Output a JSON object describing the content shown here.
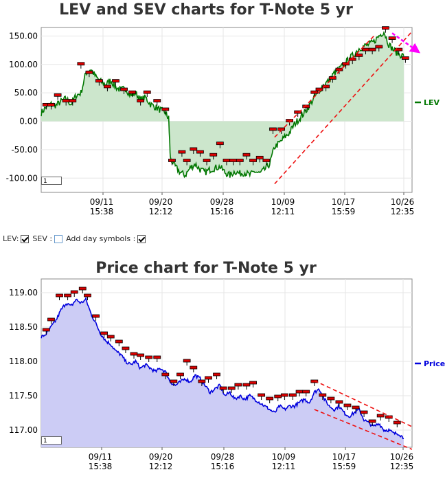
{
  "chart_data": [
    {
      "type": "line",
      "title": "LEV and SEV charts for T-Note 5 yr",
      "legend": "right",
      "series": [
        {
          "name": "LEV",
          "color": "#007700",
          "fill": "#cce6cc"
        }
      ],
      "yticks": [
        "150.00",
        "100.00",
        "50.00",
        "0.00",
        "-50.00",
        "-100.00"
      ],
      "ytick_values": [
        150,
        100,
        50,
        0,
        -50,
        -100
      ],
      "ylim": [
        -125,
        165
      ],
      "xticks": [
        {
          "date": "09/11",
          "time": "15:38"
        },
        {
          "date": "09/20",
          "time": "12:12"
        },
        {
          "date": "09/28",
          "time": "15:16"
        },
        {
          "date": "10/09",
          "time": "12:11"
        },
        {
          "date": "10/17",
          "time": "15:59"
        },
        {
          "date": "10/26",
          "time": "12:35"
        }
      ],
      "zoom_value": "1",
      "anchors": [
        [
          0,
          15
        ],
        [
          3,
          25
        ],
        [
          6,
          30
        ],
        [
          9,
          28
        ],
        [
          12,
          35
        ],
        [
          15,
          40
        ],
        [
          18,
          30
        ],
        [
          21,
          45
        ],
        [
          24,
          50
        ],
        [
          27,
          85
        ],
        [
          30,
          92
        ],
        [
          33,
          78
        ],
        [
          36,
          70
        ],
        [
          39,
          65
        ],
        [
          42,
          72
        ],
        [
          45,
          60
        ],
        [
          48,
          55
        ],
        [
          51,
          58
        ],
        [
          54,
          45
        ],
        [
          57,
          50
        ],
        [
          60,
          38
        ],
        [
          63,
          42
        ],
        [
          66,
          30
        ],
        [
          69,
          25
        ],
        [
          72,
          20
        ],
        [
          75,
          15
        ],
        [
          77,
          5
        ],
        [
          78,
          -65
        ],
        [
          81,
          -80
        ],
        [
          84,
          -90
        ],
        [
          87,
          -95
        ],
        [
          90,
          -82
        ],
        [
          93,
          -75
        ],
        [
          96,
          -85
        ],
        [
          99,
          -90
        ],
        [
          102,
          -85
        ],
        [
          105,
          -82
        ],
        [
          108,
          -80
        ],
        [
          111,
          -90
        ],
        [
          114,
          -95
        ],
        [
          117,
          -88
        ],
        [
          120,
          -92
        ],
        [
          123,
          -90
        ],
        [
          126,
          -95
        ],
        [
          129,
          -88
        ],
        [
          132,
          -92
        ],
        [
          135,
          -85
        ],
        [
          138,
          -75
        ],
        [
          141,
          -45
        ],
        [
          144,
          -38
        ],
        [
          147,
          -28
        ],
        [
          150,
          -20
        ],
        [
          153,
          -5
        ],
        [
          156,
          5
        ],
        [
          159,
          15
        ],
        [
          162,
          28
        ],
        [
          165,
          42
        ],
        [
          168,
          55
        ],
        [
          171,
          65
        ],
        [
          174,
          72
        ],
        [
          177,
          85
        ],
        [
          180,
          92
        ],
        [
          183,
          100
        ],
        [
          186,
          110
        ],
        [
          189,
          118
        ],
        [
          192,
          128
        ],
        [
          195,
          132
        ],
        [
          198,
          135
        ],
        [
          201,
          140
        ],
        [
          204,
          150
        ],
        [
          207,
          158
        ],
        [
          210,
          135
        ],
        [
          213,
          125
        ],
        [
          216,
          118
        ],
        [
          219,
          115
        ]
      ],
      "markers": [
        {
          "x": 3,
          "y": 28
        },
        {
          "x": 6,
          "y": 28
        },
        {
          "x": 10,
          "y": 45
        },
        {
          "x": 15,
          "y": 35
        },
        {
          "x": 19,
          "y": 35
        },
        {
          "x": 24,
          "y": 100
        },
        {
          "x": 29,
          "y": 85
        },
        {
          "x": 35,
          "y": 70
        },
        {
          "x": 40,
          "y": 60
        },
        {
          "x": 45,
          "y": 70
        },
        {
          "x": 50,
          "y": 55
        },
        {
          "x": 55,
          "y": 50
        },
        {
          "x": 60,
          "y": 35
        },
        {
          "x": 64,
          "y": 50
        },
        {
          "x": 70,
          "y": 35
        },
        {
          "x": 75,
          "y": 20
        },
        {
          "x": 79,
          "y": -70
        },
        {
          "x": 85,
          "y": -55
        },
        {
          "x": 88,
          "y": -70
        },
        {
          "x": 92,
          "y": -50
        },
        {
          "x": 96,
          "y": -55
        },
        {
          "x": 100,
          "y": -70
        },
        {
          "x": 104,
          "y": -60
        },
        {
          "x": 108,
          "y": -40
        },
        {
          "x": 112,
          "y": -70
        },
        {
          "x": 116,
          "y": -70
        },
        {
          "x": 120,
          "y": -70
        },
        {
          "x": 124,
          "y": -60
        },
        {
          "x": 128,
          "y": -70
        },
        {
          "x": 132,
          "y": -65
        },
        {
          "x": 136,
          "y": -70
        },
        {
          "x": 140,
          "y": -15
        },
        {
          "x": 145,
          "y": -15
        },
        {
          "x": 150,
          "y": 0
        },
        {
          "x": 155,
          "y": 15
        },
        {
          "x": 160,
          "y": 25
        },
        {
          "x": 165,
          "y": 50
        },
        {
          "x": 168,
          "y": 55
        },
        {
          "x": 172,
          "y": 60
        },
        {
          "x": 176,
          "y": 75
        },
        {
          "x": 180,
          "y": 90
        },
        {
          "x": 184,
          "y": 100
        },
        {
          "x": 188,
          "y": 108
        },
        {
          "x": 192,
          "y": 115
        },
        {
          "x": 196,
          "y": 125
        },
        {
          "x": 200,
          "y": 125
        },
        {
          "x": 204,
          "y": 130
        },
        {
          "x": 208,
          "y": 163
        },
        {
          "x": 212,
          "y": 145
        },
        {
          "x": 216,
          "y": 125
        },
        {
          "x": 220,
          "y": 110
        }
      ],
      "channel_lines": [
        {
          "x1": 141,
          "y1": -28,
          "x2": 201,
          "y2": 150
        },
        {
          "x1": 141,
          "y1": -110,
          "x2": 224,
          "y2": 158
        }
      ],
      "pointer_arrow": {
        "x1": 212,
        "y1": 155,
        "x2": 224,
        "y2": 125,
        "color": "#ff00ff"
      }
    },
    {
      "type": "line",
      "title": "Price chart for T-Note 5 yr",
      "legend": "right",
      "series": [
        {
          "name": "Price",
          "color": "#0000dd",
          "fill": "#ccccf5"
        }
      ],
      "yticks": [
        "119.00",
        "118.50",
        "118.00",
        "117.50",
        "117.00"
      ],
      "ytick_values": [
        119,
        118.5,
        118,
        117.5,
        117
      ],
      "ylim": [
        116.75,
        119.2
      ],
      "xticks": [
        {
          "date": "09/11",
          "time": "15:38"
        },
        {
          "date": "09/20",
          "time": "12:12"
        },
        {
          "date": "09/28",
          "time": "15:16"
        },
        {
          "date": "10/09",
          "time": "12:11"
        },
        {
          "date": "10/17",
          "time": "15:59"
        },
        {
          "date": "10/26",
          "time": "12:35"
        }
      ],
      "zoom_value": "1",
      "anchors": [
        [
          0,
          118.35
        ],
        [
          3,
          118.4
        ],
        [
          6,
          118.5
        ],
        [
          9,
          118.6
        ],
        [
          12,
          118.75
        ],
        [
          15,
          118.85
        ],
        [
          18,
          118.8
        ],
        [
          21,
          118.9
        ],
        [
          24,
          118.85
        ],
        [
          27,
          118.9
        ],
        [
          30,
          118.7
        ],
        [
          33,
          118.55
        ],
        [
          36,
          118.4
        ],
        [
          39,
          118.3
        ],
        [
          42,
          118.25
        ],
        [
          45,
          118.15
        ],
        [
          48,
          118.1
        ],
        [
          51,
          118.0
        ],
        [
          54,
          117.95
        ],
        [
          57,
          118.0
        ],
        [
          60,
          117.9
        ],
        [
          63,
          117.95
        ],
        [
          66,
          117.9
        ],
        [
          69,
          117.85
        ],
        [
          72,
          117.9
        ],
        [
          75,
          117.85
        ],
        [
          78,
          117.7
        ],
        [
          81,
          117.65
        ],
        [
          84,
          117.7
        ],
        [
          87,
          117.75
        ],
        [
          90,
          117.7
        ],
        [
          93,
          117.8
        ],
        [
          96,
          117.75
        ],
        [
          99,
          117.65
        ],
        [
          102,
          117.55
        ],
        [
          105,
          117.6
        ],
        [
          108,
          117.65
        ],
        [
          111,
          117.5
        ],
        [
          114,
          117.55
        ],
        [
          117,
          117.45
        ],
        [
          120,
          117.5
        ],
        [
          123,
          117.45
        ],
        [
          126,
          117.5
        ],
        [
          129,
          117.45
        ],
        [
          132,
          117.4
        ],
        [
          135,
          117.35
        ],
        [
          138,
          117.3
        ],
        [
          141,
          117.25
        ],
        [
          144,
          117.35
        ],
        [
          147,
          117.3
        ],
        [
          150,
          117.35
        ],
        [
          153,
          117.35
        ],
        [
          156,
          117.4
        ],
        [
          159,
          117.45
        ],
        [
          162,
          117.4
        ],
        [
          165,
          117.55
        ],
        [
          168,
          117.6
        ],
        [
          171,
          117.45
        ],
        [
          174,
          117.35
        ],
        [
          177,
          117.3
        ],
        [
          180,
          117.35
        ],
        [
          183,
          117.25
        ],
        [
          186,
          117.2
        ],
        [
          189,
          117.25
        ],
        [
          192,
          117.3
        ],
        [
          195,
          117.15
        ],
        [
          198,
          117.1
        ],
        [
          201,
          117.05
        ],
        [
          204,
          117.1
        ],
        [
          207,
          117.0
        ],
        [
          210,
          117.0
        ],
        [
          213,
          116.95
        ],
        [
          216,
          116.95
        ],
        [
          219,
          116.88
        ]
      ],
      "markers": [
        {
          "x": 3,
          "y": 118.45
        },
        {
          "x": 6,
          "y": 118.6
        },
        {
          "x": 11,
          "y": 118.95
        },
        {
          "x": 16,
          "y": 118.95
        },
        {
          "x": 20,
          "y": 119.0
        },
        {
          "x": 25,
          "y": 119.05
        },
        {
          "x": 28,
          "y": 118.95
        },
        {
          "x": 33,
          "y": 118.65
        },
        {
          "x": 38,
          "y": 118.4
        },
        {
          "x": 42,
          "y": 118.35
        },
        {
          "x": 47,
          "y": 118.28
        },
        {
          "x": 51,
          "y": 118.18
        },
        {
          "x": 56,
          "y": 118.1
        },
        {
          "x": 60,
          "y": 118.08
        },
        {
          "x": 65,
          "y": 118.05
        },
        {
          "x": 70,
          "y": 118.05
        },
        {
          "x": 75,
          "y": 117.8
        },
        {
          "x": 80,
          "y": 117.7
        },
        {
          "x": 84,
          "y": 117.8
        },
        {
          "x": 88,
          "y": 118.0
        },
        {
          "x": 92,
          "y": 117.9
        },
        {
          "x": 97,
          "y": 117.7
        },
        {
          "x": 101,
          "y": 117.75
        },
        {
          "x": 106,
          "y": 117.8
        },
        {
          "x": 110,
          "y": 117.6
        },
        {
          "x": 115,
          "y": 117.6
        },
        {
          "x": 119,
          "y": 117.65
        },
        {
          "x": 124,
          "y": 117.65
        },
        {
          "x": 128,
          "y": 117.68
        },
        {
          "x": 133,
          "y": 117.5
        },
        {
          "x": 138,
          "y": 117.45
        },
        {
          "x": 143,
          "y": 117.48
        },
        {
          "x": 147,
          "y": 117.5
        },
        {
          "x": 152,
          "y": 117.5
        },
        {
          "x": 156,
          "y": 117.55
        },
        {
          "x": 160,
          "y": 117.55
        },
        {
          "x": 165,
          "y": 117.7
        },
        {
          "x": 170,
          "y": 117.5
        },
        {
          "x": 175,
          "y": 117.45
        },
        {
          "x": 180,
          "y": 117.4
        },
        {
          "x": 185,
          "y": 117.35
        },
        {
          "x": 190,
          "y": 117.32
        },
        {
          "x": 195,
          "y": 117.25
        },
        {
          "x": 200,
          "y": 117.12
        },
        {
          "x": 205,
          "y": 117.2
        },
        {
          "x": 210,
          "y": 117.18
        },
        {
          "x": 215,
          "y": 117.1
        }
      ],
      "channel_lines": [
        {
          "x1": 165,
          "y1": 117.72,
          "x2": 224,
          "y2": 117.05
        },
        {
          "x1": 165,
          "y1": 117.3,
          "x2": 224,
          "y2": 116.72
        }
      ]
    }
  ],
  "controls": {
    "lev_label": "LEV:",
    "sev_label": "SEV :",
    "day_symbols_label": "Add day symbols :",
    "lev_checked": true,
    "sev_checked": false,
    "day_symbols_checked": true
  }
}
